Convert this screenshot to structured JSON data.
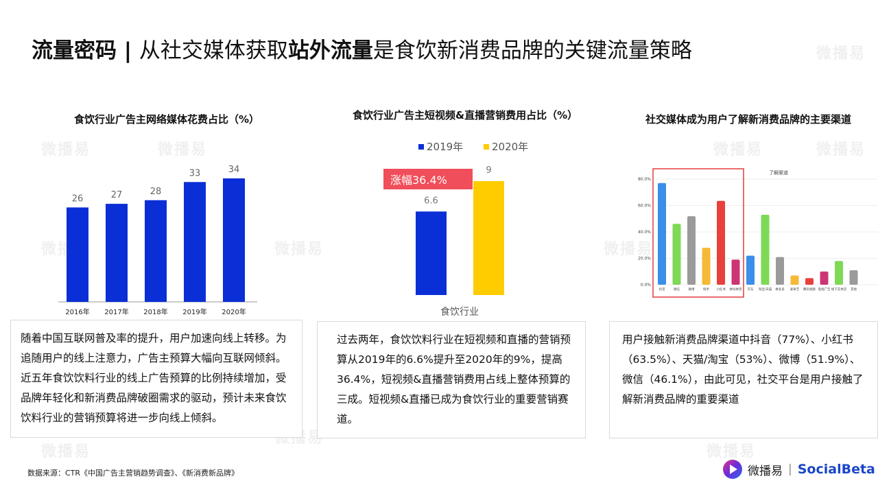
{
  "header": {
    "title_part1": "流量密码 | ",
    "title_part2": "从社交媒体获取",
    "title_part3": "站外流量",
    "title_part4": "是食饮新消费品牌的关键流量策略"
  },
  "watermark": "微播易",
  "colors": {
    "blue": "#0b2fd6",
    "yellow": "#ffcc00",
    "red_badge": "#f04e5a"
  },
  "chart1": {
    "title": "食饮行业广告主网络媒体花费占比（%）",
    "chart_data": {
      "type": "bar",
      "categories": [
        "2016年",
        "2017年",
        "2018年",
        "2019年",
        "2020年"
      ],
      "values": [
        26,
        27,
        28,
        33,
        34
      ],
      "ylim": [
        0,
        34
      ]
    }
  },
  "chart2": {
    "title": "食饮行业广告主短视频&直播营销费用占比（%）",
    "badge": "涨幅36.4%",
    "chart_data": {
      "type": "bar",
      "categories": [
        "食饮行业"
      ],
      "series": [
        {
          "name": "2019年",
          "values": [
            6.6
          ],
          "color": "#0b2fd6"
        },
        {
          "name": "2020年",
          "values": [
            9
          ],
          "color": "#ffcc00"
        }
      ],
      "legend": "top"
    }
  },
  "chart3": {
    "title": "社交媒体成为用户了解新消费品牌的主要渠道",
    "chart_data": {
      "type": "bar",
      "title": "了解渠道",
      "categories": [
        "抖音",
        "微信",
        "微博",
        "快手",
        "小红书",
        "拼抖拼音",
        "京东",
        "淘宝/天猫",
        "拼多多",
        "爱奇艺",
        "腾讯视频",
        "电视广告",
        "线下实体店",
        "其他"
      ],
      "values": [
        77,
        46.1,
        51.9,
        28,
        63.5,
        19,
        22,
        53,
        21,
        7,
        5,
        10,
        18,
        11
      ],
      "colors": [
        "#3b8eea",
        "#7ed957",
        "#9a9a9a",
        "#f5b935",
        "#e8413b",
        "#cc3575",
        "#3b8eea",
        "#7ed957",
        "#9a9a9a",
        "#f5b935",
        "#e8413b",
        "#cc3575",
        "#7ed957",
        "#9a9a9a"
      ],
      "yticks": [
        "0.0%",
        "20.0%",
        "40.0%",
        "60.0%",
        "80.0%"
      ],
      "ylim": [
        0,
        80
      ]
    }
  },
  "text1": "随着中国互联网普及率的提升，用户加速向线上转移。为追随用户的线上注意力，广告主预算大幅向互联网倾斜。近五年食饮饮料行业的线上广告预算的比例持续增加，受品牌年轻化和新消费品牌破圈需求的驱动，预计未来食饮饮料行业的营销预算将进一步向线上倾斜。",
  "text2": "过去两年，食饮饮料行业在短视频和直播的营销预算从2019年的6.6%提升至2020年的9%，提高36.4%，短视频&直播营销费用占线上整体预算的三成。短视频&直播已成为食饮行业的重要营销赛道。",
  "text3": "用户接触新消费品牌渠道中抖音（77%）、小红书（63.5%）、天猫/淘宝（53%）、微博（51.9%）、微信（46.1%），由此可见，社交平台是用户接触了解新消费品牌的重要渠道",
  "source": "数据来源：CTR《中国广告主营销趋势调查》、《新消费新品牌》",
  "logo": {
    "name_cn": "微播易",
    "sep": "|",
    "name_en": "SocialBeta"
  }
}
